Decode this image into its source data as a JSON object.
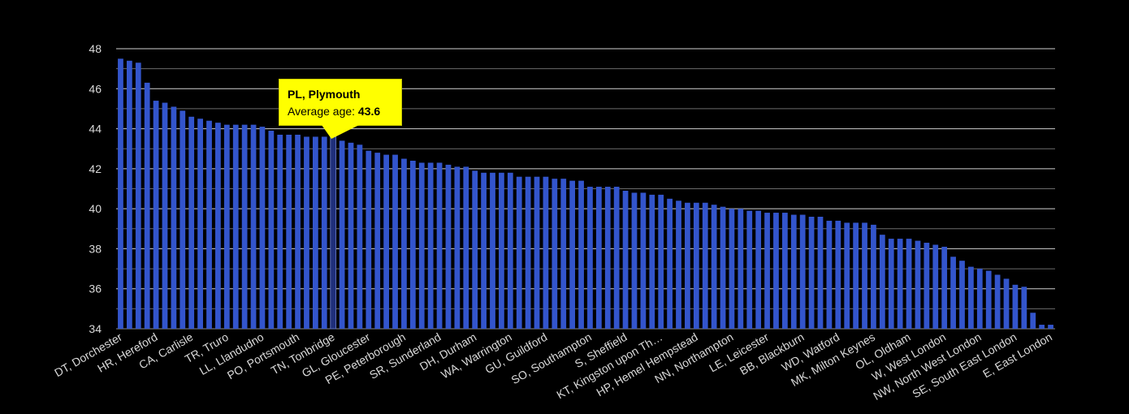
{
  "chart_data": {
    "type": "bar",
    "title": "",
    "xlabel": "",
    "ylabel": "",
    "ylim": [
      34,
      48
    ],
    "yticks": [
      34,
      36,
      38,
      40,
      42,
      44,
      46,
      48
    ],
    "grid": true,
    "bar_color": "#3355cc",
    "highlight_color": "#1f2f7a",
    "background": "#000000",
    "x_tick_labels": [
      "DT, Dorchester",
      "HR, Hereford",
      "CA, Carlisle",
      "TR, Truro",
      "LL, Llandudno",
      "PO, Portsmouth",
      "TN, Tonbridge",
      "GL, Gloucester",
      "PE, Peterborough",
      "SR, Sunderland",
      "DH, Durham",
      "WA, Warrington",
      "GU, Guildford",
      "SO, Southampton",
      "S, Sheffield",
      "KT, Kingston upon Th…",
      "HP, Hemel Hempstead",
      "NN, Northampton",
      "LE, Leicester",
      "BB, Blackburn",
      "WD, Watford",
      "MK, Milton Keynes",
      "OL, Oldham",
      "W, West London",
      "NW, North West London",
      "SE, South East London",
      "E, East London"
    ],
    "values": [
      47.5,
      47.4,
      47.3,
      46.3,
      45.4,
      45.3,
      45.1,
      44.9,
      44.6,
      44.5,
      44.4,
      44.3,
      44.2,
      44.2,
      44.2,
      44.2,
      44.1,
      43.9,
      43.7,
      43.7,
      43.7,
      43.6,
      43.6,
      43.6,
      43.6,
      43.4,
      43.3,
      43.2,
      42.9,
      42.8,
      42.7,
      42.7,
      42.5,
      42.4,
      42.3,
      42.3,
      42.3,
      42.2,
      42.1,
      42.1,
      41.9,
      41.8,
      41.8,
      41.8,
      41.8,
      41.6,
      41.6,
      41.6,
      41.6,
      41.5,
      41.5,
      41.4,
      41.4,
      41.1,
      41.1,
      41.1,
      41.1,
      40.9,
      40.8,
      40.8,
      40.7,
      40.7,
      40.5,
      40.4,
      40.3,
      40.3,
      40.3,
      40.2,
      40.1,
      40.0,
      40.0,
      39.9,
      39.9,
      39.8,
      39.8,
      39.8,
      39.7,
      39.7,
      39.6,
      39.6,
      39.4,
      39.4,
      39.3,
      39.3,
      39.3,
      39.2,
      38.7,
      38.5,
      38.5,
      38.5,
      38.4,
      38.3,
      38.2,
      38.1,
      37.6,
      37.4,
      37.1,
      37.0,
      36.9,
      36.7,
      36.5,
      36.2,
      36.1,
      34.8,
      34.2,
      34.2
    ],
    "highlight_index": 24,
    "tooltip": {
      "title": "PL, Plymouth",
      "label": "Average age:",
      "value": "43.6"
    }
  }
}
